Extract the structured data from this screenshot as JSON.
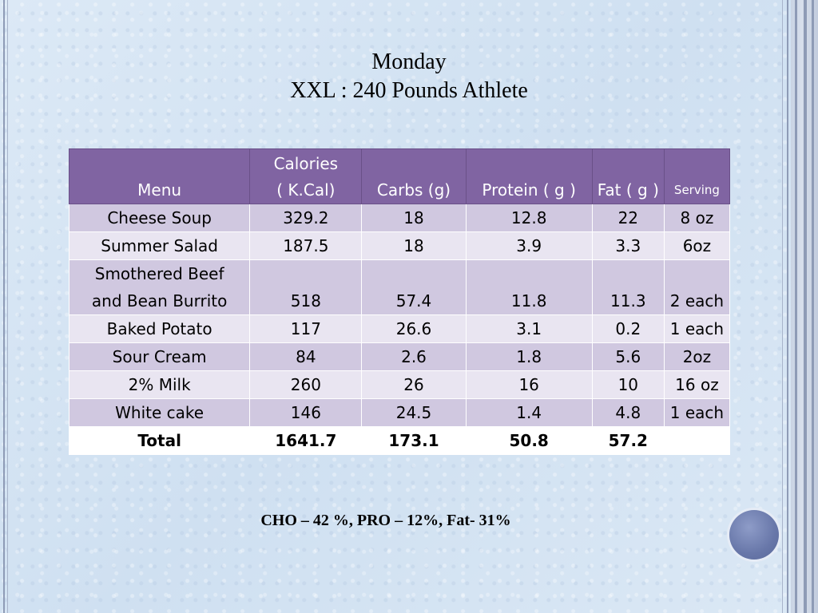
{
  "title": {
    "line1": "Monday",
    "line2": "XXL : 240 Pounds Athlete"
  },
  "table": {
    "headers": {
      "menu": "Menu",
      "calories_line1": "Calories",
      "calories_line2": "( K.Cal)",
      "carbs": "Carbs (g)",
      "protein": "Protein ( g )",
      "fat": "Fat ( g )",
      "serving": "Serving"
    },
    "rows": [
      {
        "menu": "Cheese Soup",
        "calories": "329.2",
        "carbs": "18",
        "protein": "12.8",
        "fat": "22",
        "serving": "8 oz"
      },
      {
        "menu": "Summer Salad",
        "calories": "187.5",
        "carbs": "18",
        "protein": "3.9",
        "fat": "3.3",
        "serving": "6oz"
      },
      {
        "menu_line1": "Smothered Beef",
        "menu_line2": "and Bean Burrito",
        "calories": "518",
        "carbs": "57.4",
        "protein": "11.8",
        "fat": "11.3",
        "serving": "2 each"
      },
      {
        "menu": "Baked Potato",
        "calories": "117",
        "carbs": "26.6",
        "protein": "3.1",
        "fat": "0.2",
        "serving": "1 each"
      },
      {
        "menu": "Sour Cream",
        "calories": "84",
        "carbs": "2.6",
        "protein": "1.8",
        "fat": "5.6",
        "serving": "2oz"
      },
      {
        "menu": "2% Milk",
        "calories": "260",
        "carbs": "26",
        "protein": "16",
        "fat": "10",
        "serving": "16 oz"
      },
      {
        "menu": "White cake",
        "calories": "146",
        "carbs": "24.5",
        "protein": "1.4",
        "fat": "4.8",
        "serving": "1 each"
      }
    ],
    "total": {
      "menu": "Total",
      "calories": "1641.7",
      "carbs": "173.1",
      "protein": "50.8",
      "fat": "57.2",
      "serving": ""
    }
  },
  "footnote": "CHO – 42 %, PRO – 12%, Fat- 31%",
  "colors": {
    "header_bg": "#8064a2",
    "row_dark": "#d0c8e0",
    "row_light": "#e9e5f1",
    "background": "#d8e6f4",
    "orb": "#6877a9"
  }
}
